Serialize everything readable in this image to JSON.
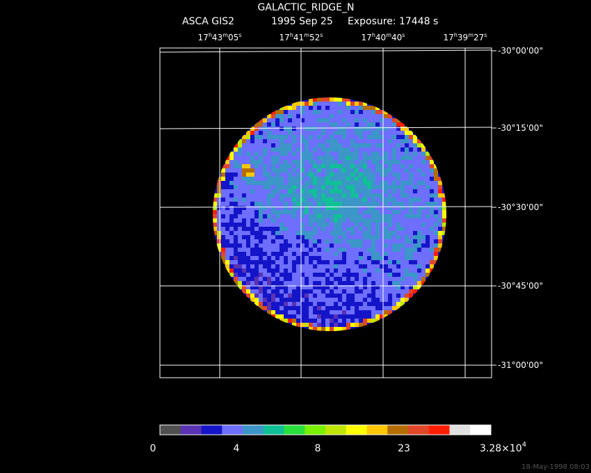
{
  "header": {
    "title": "GALACTIC_RIDGE_N",
    "instrument": "ASCA GIS2",
    "date": "1995 Sep 25",
    "exposure": "Exposure: 17448 s"
  },
  "ra_labels": [
    [
      "17",
      "h",
      "43",
      "m",
      "05",
      "s"
    ],
    [
      "17",
      "h",
      "41",
      "m",
      "52",
      "s"
    ],
    [
      "17",
      "h",
      "40",
      "m",
      "40",
      "s"
    ],
    [
      "17",
      "h",
      "39",
      "m",
      "27",
      "s"
    ]
  ],
  "dec_labels": [
    "-30°00'00\"",
    "-30°15'00\"",
    "-30°30'00\"",
    "-30°45'00\"",
    "-31°00'00\""
  ],
  "colorbar": {
    "colors": [
      "#505050",
      "#5a32b4",
      "#1414c8",
      "#6e6eff",
      "#3c96c8",
      "#10c096",
      "#28e03c",
      "#78f000",
      "#bee600",
      "#ffff00",
      "#ffc800",
      "#b46e00",
      "#e04628",
      "#ff1e00",
      "#e0e0e0",
      "#ffffff"
    ],
    "labels": [
      "0",
      "4",
      "8",
      "23"
    ],
    "max_label": {
      "base": "3.28×10",
      "exponent": "4"
    }
  },
  "timestamp": "18-May-1998 08:03"
}
